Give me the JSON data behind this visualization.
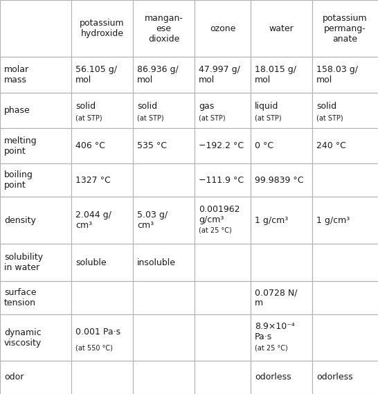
{
  "col_headers": [
    "",
    "potassium\nhydroxide",
    "mangan-\nese\ndioxide",
    "ozone",
    "water",
    "potassium\npermang-\nanate"
  ],
  "rows": [
    {
      "label": "molar\nmass",
      "cells": [
        {
          "text": "56.105 g/\nmol",
          "main": "56.105 g/\nmol",
          "small": ""
        },
        {
          "text": "86.936 g/\nmol",
          "main": "86.936 g/\nmol",
          "small": ""
        },
        {
          "text": "47.997 g/\nmol",
          "main": "47.997 g/\nmol",
          "small": ""
        },
        {
          "text": "18.015 g/\nmol",
          "main": "18.015 g/\nmol",
          "small": ""
        },
        {
          "text": "158.03 g/\nmol",
          "main": "158.03 g/\nmol",
          "small": ""
        }
      ]
    },
    {
      "label": "phase",
      "cells": [
        {
          "text": "solid",
          "main": "solid",
          "small": "(at STP)"
        },
        {
          "text": "solid",
          "main": "solid",
          "small": "(at STP)"
        },
        {
          "text": "gas",
          "main": "gas",
          "small": "(at STP)"
        },
        {
          "text": "liquid",
          "main": "liquid",
          "small": "(at STP)"
        },
        {
          "text": "solid",
          "main": "solid",
          "small": "(at STP)"
        }
      ]
    },
    {
      "label": "melting\npoint",
      "cells": [
        {
          "text": "406 °C",
          "main": "406 °C",
          "small": ""
        },
        {
          "text": "535 °C",
          "main": "535 °C",
          "small": ""
        },
        {
          "text": "−192.2 °C",
          "main": "−192.2 °C",
          "small": ""
        },
        {
          "text": "0 °C",
          "main": "0 °C",
          "small": ""
        },
        {
          "text": "240 °C",
          "main": "240 °C",
          "small": ""
        }
      ]
    },
    {
      "label": "boiling\npoint",
      "cells": [
        {
          "text": "1327 °C",
          "main": "1327 °C",
          "small": ""
        },
        {
          "text": "",
          "main": "",
          "small": ""
        },
        {
          "text": "−111.9 °C",
          "main": "−111.9 °C",
          "small": ""
        },
        {
          "text": "99.9839 °C",
          "main": "99.9839 °C",
          "small": ""
        },
        {
          "text": "",
          "main": "",
          "small": ""
        }
      ]
    },
    {
      "label": "density",
      "cells": [
        {
          "text": "2.044 g/\ncm³",
          "main": "2.044 g/\ncm³",
          "small": ""
        },
        {
          "text": "5.03 g/\ncm³",
          "main": "5.03 g/\ncm³",
          "small": ""
        },
        {
          "text": "0.001962\ng/cm³",
          "main": "0.001962\ng/cm³",
          "small": "(at 25 °C)"
        },
        {
          "text": "1 g/cm³",
          "main": "1 g/cm³",
          "small": ""
        },
        {
          "text": "1 g/cm³",
          "main": "1 g/cm³",
          "small": ""
        }
      ]
    },
    {
      "label": "solubility\nin water",
      "cells": [
        {
          "text": "soluble",
          "main": "soluble",
          "small": ""
        },
        {
          "text": "insoluble",
          "main": "insoluble",
          "small": ""
        },
        {
          "text": "",
          "main": "",
          "small": ""
        },
        {
          "text": "",
          "main": "",
          "small": ""
        },
        {
          "text": "",
          "main": "",
          "small": ""
        }
      ]
    },
    {
      "label": "surface\ntension",
      "cells": [
        {
          "text": "",
          "main": "",
          "small": ""
        },
        {
          "text": "",
          "main": "",
          "small": ""
        },
        {
          "text": "",
          "main": "",
          "small": ""
        },
        {
          "text": "0.0728 N/\nm",
          "main": "0.0728 N/\nm",
          "small": ""
        },
        {
          "text": "",
          "main": "",
          "small": ""
        }
      ]
    },
    {
      "label": "dynamic\nviscosity",
      "cells": [
        {
          "text": "0.001 Pa·s",
          "main": "0.001 Pa·s",
          "small": "(at 550 °C)"
        },
        {
          "text": "",
          "main": "",
          "small": ""
        },
        {
          "text": "",
          "main": "",
          "small": ""
        },
        {
          "text": "8.9×10⁻⁴\nPa·s",
          "main": "8.9×10⁻⁴\nPa·s",
          "small": "(at 25 °C)"
        },
        {
          "text": "",
          "main": "",
          "small": ""
        }
      ]
    },
    {
      "label": "odor",
      "cells": [
        {
          "text": "",
          "main": "",
          "small": ""
        },
        {
          "text": "",
          "main": "",
          "small": ""
        },
        {
          "text": "",
          "main": "",
          "small": ""
        },
        {
          "text": "odorless",
          "main": "odorless",
          "small": ""
        },
        {
          "text": "odorless",
          "main": "odorless",
          "small": ""
        }
      ]
    }
  ],
  "bg_color": "#ffffff",
  "border_color": "#b0b0b0",
  "text_color": "#1a1a1a",
  "main_fontsize": 9.0,
  "small_fontsize": 7.0,
  "header_fontsize": 9.0
}
